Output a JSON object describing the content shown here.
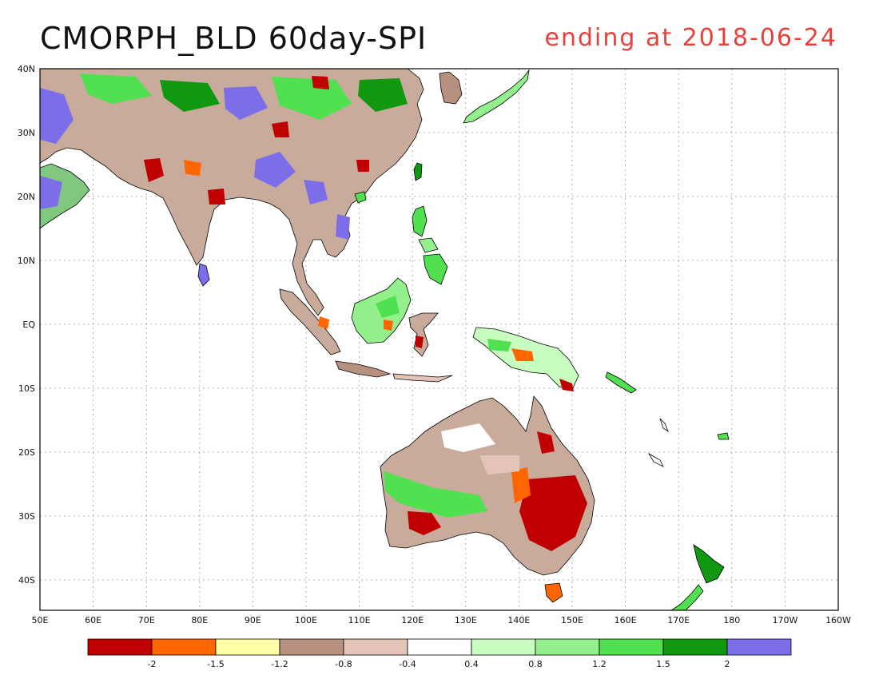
{
  "title": "CMORPH_BLD 60day-SPI",
  "subtitle": "ending at 2018-06-24",
  "map": {
    "lat_labels": [
      "40N",
      "30N",
      "20N",
      "10N",
      "EQ",
      "10S",
      "20S",
      "30S",
      "40S"
    ],
    "lon_labels": [
      "50E",
      "60E",
      "70E",
      "80E",
      "90E",
      "100E",
      "110E",
      "120E",
      "130E",
      "140E",
      "150E",
      "160E",
      "170E",
      "180",
      "170W",
      "160W"
    ],
    "grid": true
  },
  "legend": {
    "colors": [
      "#c00000",
      "#ff6600",
      "#ffffa8",
      "#b89080",
      "#e4c4b8",
      "#ffffff",
      "#c8ffc0",
      "#94f08c",
      "#50e050",
      "#109810",
      "#7c6ee8"
    ],
    "labels": [
      "-2",
      "-1.5",
      "-1.2",
      "-0.8",
      "-0.4",
      "0.4",
      "0.8",
      "1.2",
      "1.5",
      "2"
    ]
  }
}
